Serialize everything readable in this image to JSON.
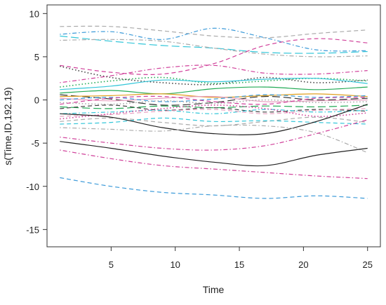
{
  "chart_data": {
    "type": "line",
    "title": "",
    "xlabel": "Time",
    "ylabel": "s(Time,ID,192.19)",
    "xlim": [
      0,
      26
    ],
    "ylim": [
      -17,
      11
    ],
    "x_ticks": [
      5,
      10,
      15,
      20,
      25
    ],
    "y_ticks": [
      -15,
      -10,
      -5,
      0,
      5,
      10
    ],
    "x_tick_labels": [
      "5",
      "10",
      "15",
      "20",
      "25"
    ],
    "y_tick_labels": [
      "-15",
      "-10",
      "-5",
      "0",
      "5",
      "10"
    ],
    "grid": false,
    "legend": "none",
    "x": [
      1,
      5,
      9,
      13,
      17,
      21,
      25
    ],
    "series": [
      {
        "values": [
          8.5,
          8.5,
          8.0,
          7.4,
          7.2,
          7.7,
          8.1
        ],
        "color": "#aaaaaa",
        "dash": "dashed"
      },
      {
        "values": [
          7.6,
          7.9,
          7.0,
          8.3,
          7.2,
          5.8,
          5.7
        ],
        "color": "#3b9ad9",
        "dash": "dotdash"
      },
      {
        "values": [
          7.4,
          6.8,
          6.3,
          6.0,
          5.5,
          5.4,
          5.6
        ],
        "color": "#33c6d9",
        "dash": "longdash"
      },
      {
        "values": [
          6.9,
          7.0,
          6.8,
          6.0,
          5.3,
          5.0,
          5.1
        ],
        "color": "#aaaaaa",
        "dash": "dotdash"
      },
      {
        "values": [
          4.0,
          3.2,
          3.0,
          4.2,
          6.3,
          7.1,
          6.6
        ],
        "color": "#d0409a",
        "dash": "dashed"
      },
      {
        "values": [
          3.9,
          2.6,
          2.0,
          1.8,
          2.6,
          2.0,
          2.3
        ],
        "color": "#444444",
        "dash": "dotted"
      },
      {
        "values": [
          2.0,
          2.8,
          3.7,
          4.0,
          3.1,
          3.0,
          3.4
        ],
        "color": "#d0409a",
        "dash": "dotdash"
      },
      {
        "values": [
          1.5,
          2.2,
          2.6,
          1.9,
          2.2,
          2.5,
          2.2
        ],
        "color": "#22aa55",
        "dash": "dotted"
      },
      {
        "values": [
          1.2,
          1.6,
          2.3,
          2.1,
          2.4,
          2.5,
          1.9
        ],
        "color": "#33c6d9",
        "dash": "solid"
      },
      {
        "values": [
          0.8,
          1.1,
          0.7,
          1.3,
          1.5,
          1.2,
          1.5
        ],
        "color": "#22aa55",
        "dash": "solid"
      },
      {
        "values": [
          0.6,
          0.1,
          -0.6,
          -0.3,
          0.4,
          0.0,
          0.2
        ],
        "color": "#333333",
        "dash": "longdash"
      },
      {
        "values": [
          0.4,
          0.5,
          0.7,
          0.3,
          0.5,
          0.7,
          0.4
        ],
        "color": "#e0a020",
        "dash": "solid"
      },
      {
        "values": [
          0.2,
          -0.1,
          0.2,
          0.4,
          -0.2,
          -0.1,
          0.0
        ],
        "color": "#e8a0c0",
        "dash": "solid"
      },
      {
        "values": [
          0.0,
          0.3,
          -0.2,
          0.1,
          0.6,
          0.3,
          0.5
        ],
        "color": "#3b9ad9",
        "dash": "dashed"
      },
      {
        "values": [
          -0.3,
          -0.5,
          -0.1,
          -0.4,
          0.0,
          -0.3,
          -0.2
        ],
        "color": "#aaaaaa",
        "dash": "dotted"
      },
      {
        "values": [
          -0.5,
          0.2,
          0.4,
          -0.2,
          -0.5,
          0.2,
          0.3
        ],
        "color": "#d0409a",
        "dash": "dashed"
      },
      {
        "values": [
          -0.8,
          -1.0,
          -0.7,
          -0.9,
          -0.7,
          -0.8,
          -0.6
        ],
        "color": "#22aa55",
        "dash": "longdash"
      },
      {
        "values": [
          -1.0,
          -0.6,
          -1.2,
          -0.9,
          -1.4,
          -1.1,
          -1.3
        ],
        "color": "#444444",
        "dash": "dashed"
      },
      {
        "values": [
          -1.6,
          -1.4,
          -1.2,
          -1.6,
          -1.1,
          -1.4,
          -1.2
        ],
        "color": "#33c6d9",
        "dash": "dotdash"
      },
      {
        "values": [
          -1.9,
          -1.7,
          -1.3,
          -1.1,
          -1.6,
          -1.2,
          -1.0
        ],
        "color": "#e8a0c0",
        "dash": "dashed"
      },
      {
        "values": [
          -2.2,
          -1.6,
          -1.0,
          -0.6,
          -1.0,
          -1.9,
          -1.5
        ],
        "color": "#d0409a",
        "dash": "dotted"
      },
      {
        "values": [
          -2.5,
          -2.1,
          -2.6,
          -3.0,
          -2.5,
          -2.0,
          -2.6
        ],
        "color": "#aaaaaa",
        "dash": "dashed"
      },
      {
        "values": [
          -2.8,
          -2.6,
          -2.1,
          -2.5,
          -2.4,
          -2.6,
          -2.8
        ],
        "color": "#33c6d9",
        "dash": "dashed"
      },
      {
        "values": [
          -1.6,
          -2.0,
          -3.2,
          -3.9,
          -3.9,
          -2.5,
          -0.5
        ],
        "color": "#222222",
        "dash": "solid"
      },
      {
        "values": [
          -3.2,
          -3.4,
          -3.6,
          -3.0,
          -3.0,
          -3.8,
          -6.1
        ],
        "color": "#aaaaaa",
        "dash": "dotdash"
      },
      {
        "values": [
          -4.3,
          -5.0,
          -5.6,
          -5.8,
          -5.3,
          -3.9,
          -2.3
        ],
        "color": "#d0409a",
        "dash": "dotdash"
      },
      {
        "values": [
          -4.8,
          -5.6,
          -6.5,
          -7.2,
          -7.6,
          -6.4,
          -5.6
        ],
        "color": "#222222",
        "dash": "solid"
      },
      {
        "values": [
          -5.8,
          -6.8,
          -7.6,
          -8.0,
          -8.4,
          -8.8,
          -9.1
        ],
        "color": "#d0409a",
        "dash": "dotdash"
      },
      {
        "values": [
          -9.0,
          -10.0,
          -10.7,
          -11.0,
          -11.4,
          -11.1,
          -11.4
        ],
        "color": "#3b9ad9",
        "dash": "dashed"
      }
    ]
  }
}
